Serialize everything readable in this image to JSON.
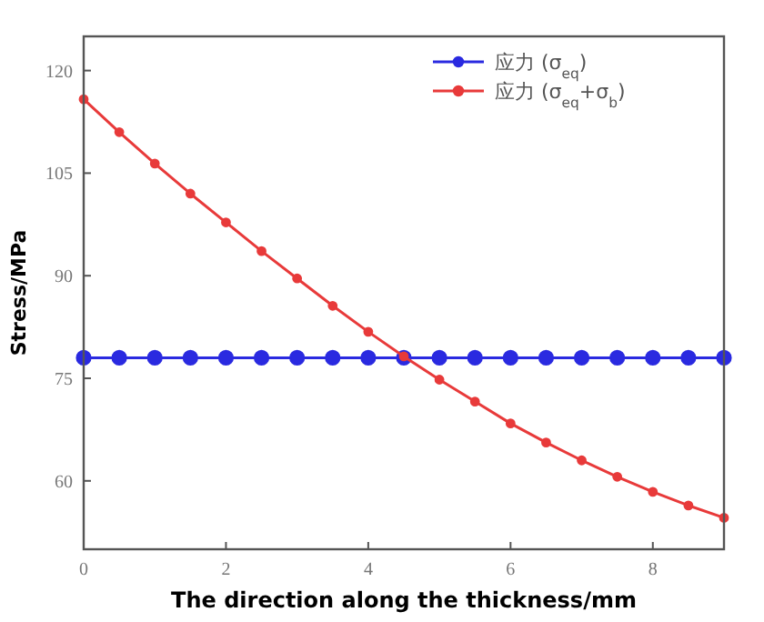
{
  "chart_data": {
    "type": "line",
    "xlabel": "The direction along the thickness/mm",
    "ylabel": "Stress/MPa",
    "x": [
      0,
      0.5,
      1,
      1.5,
      2,
      2.5,
      3,
      3.5,
      4,
      4.5,
      5,
      5.5,
      6,
      6.5,
      7,
      7.5,
      8,
      8.5,
      9
    ],
    "series": [
      {
        "name": "应力 (σ$_{eq}$)",
        "color": "#2a2ae0",
        "values": [
          78,
          78,
          78,
          78,
          78,
          78,
          78,
          78,
          78,
          78,
          78,
          78,
          78,
          78,
          78,
          78,
          78,
          78,
          78
        ]
      },
      {
        "name": "应力 (σ$_{eq}$+σ$_{b}$)",
        "color": "#e83a3a",
        "values": [
          115.8,
          111,
          106.4,
          102,
          97.8,
          93.6,
          89.6,
          85.6,
          81.8,
          78.2,
          74.8,
          71.6,
          68.4,
          65.6,
          63,
          60.6,
          58.4,
          56.4,
          54.6
        ]
      }
    ],
    "xlim": [
      0,
      9
    ],
    "xticks": [
      0,
      2,
      4,
      6,
      8
    ],
    "ylim": [
      50,
      125
    ],
    "yticks": [
      60,
      75,
      90,
      105,
      120
    ],
    "legend": "top right",
    "marker": "circle",
    "line_style": "solid",
    "grid": false
  }
}
